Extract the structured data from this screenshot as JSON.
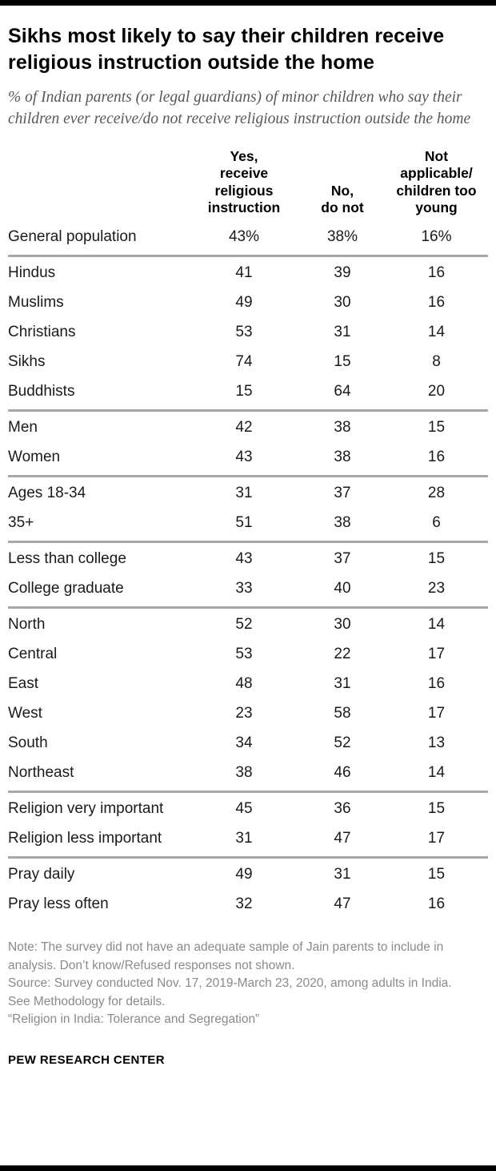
{
  "colors": {
    "bar": "#000000",
    "divider": "#a7a7a7",
    "title": "#000000",
    "subtitle": "#58585a",
    "note": "#8a8a8a"
  },
  "chart_data": {
    "type": "table",
    "title": "Sikhs most likely to say their children receive religious instruction outside the home",
    "subtitle": "% of Indian parents (or legal guardians) of minor children who say their children ever receive/do not receive religious instruction outside the home",
    "columns": [
      "Yes,\nreceive\nreligious\ninstruction",
      "No,\ndo not",
      "Not\napplicable/\nchildren too\nyoung"
    ],
    "groups": [
      {
        "rows": [
          {
            "label": "General population",
            "values": [
              "43%",
              "38%",
              "16%"
            ]
          }
        ]
      },
      {
        "rows": [
          {
            "label": "Hindus",
            "values": [
              "41",
              "39",
              "16"
            ]
          },
          {
            "label": "Muslims",
            "values": [
              "49",
              "30",
              "16"
            ]
          },
          {
            "label": "Christians",
            "values": [
              "53",
              "31",
              "14"
            ]
          },
          {
            "label": "Sikhs",
            "values": [
              "74",
              "15",
              "8"
            ]
          },
          {
            "label": "Buddhists",
            "values": [
              "15",
              "64",
              "20"
            ]
          }
        ]
      },
      {
        "rows": [
          {
            "label": "Men",
            "values": [
              "42",
              "38",
              "15"
            ]
          },
          {
            "label": "Women",
            "values": [
              "43",
              "38",
              "16"
            ]
          }
        ]
      },
      {
        "rows": [
          {
            "label": "Ages 18-34",
            "values": [
              "31",
              "37",
              "28"
            ]
          },
          {
            "label": "35+",
            "values": [
              "51",
              "38",
              "6"
            ]
          }
        ]
      },
      {
        "rows": [
          {
            "label": "Less than college",
            "values": [
              "43",
              "37",
              "15"
            ]
          },
          {
            "label": "College graduate",
            "values": [
              "33",
              "40",
              "23"
            ]
          }
        ]
      },
      {
        "rows": [
          {
            "label": "North",
            "values": [
              "52",
              "30",
              "14"
            ]
          },
          {
            "label": "Central",
            "values": [
              "53",
              "22",
              "17"
            ]
          },
          {
            "label": "East",
            "values": [
              "48",
              "31",
              "16"
            ]
          },
          {
            "label": "West",
            "values": [
              "23",
              "58",
              "17"
            ]
          },
          {
            "label": "South",
            "values": [
              "34",
              "52",
              "13"
            ]
          },
          {
            "label": "Northeast",
            "values": [
              "38",
              "46",
              "14"
            ]
          }
        ]
      },
      {
        "rows": [
          {
            "label": "Religion very important",
            "values": [
              "45",
              "36",
              "15"
            ]
          },
          {
            "label": "Religion less important",
            "values": [
              "31",
              "47",
              "17"
            ]
          }
        ]
      },
      {
        "rows": [
          {
            "label": "Pray daily",
            "values": [
              "49",
              "31",
              "15"
            ]
          },
          {
            "label": "Pray less often",
            "values": [
              "32",
              "47",
              "16"
            ]
          }
        ]
      }
    ]
  },
  "footer": {
    "note": "Note: The survey did not have an adequate sample of Jain parents to include in analysis. Don’t know/Refused responses not shown.",
    "source": "Source: Survey conducted Nov. 17, 2019-March 23, 2020, among adults in India. See Methodology for details.",
    "report": "“Religion in India: Tolerance and Segregation”",
    "brand": "PEW RESEARCH CENTER"
  }
}
